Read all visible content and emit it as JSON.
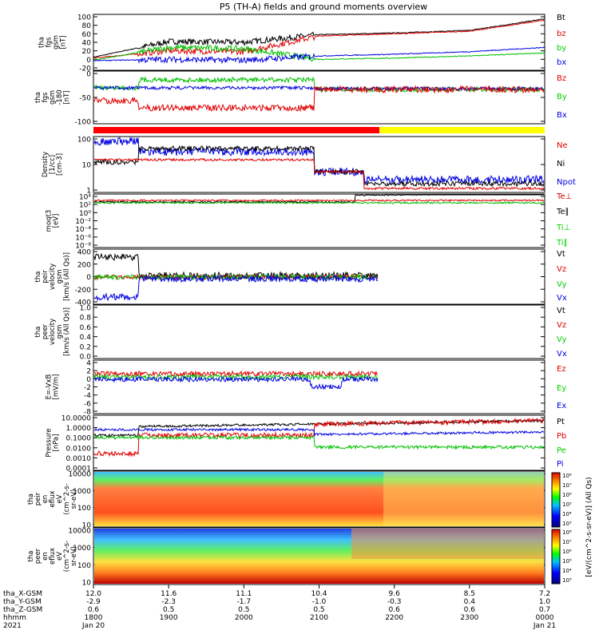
{
  "title": "P5 (TH-A) fields and ground moments overview",
  "panels": [
    {
      "id": "fgs",
      "ylabel": [
        "tha",
        "fgs",
        "gsm",
        "[nT]"
      ],
      "ticks": [
        "100",
        "80",
        "60",
        "40",
        "20",
        "0",
        "-20"
      ],
      "legend": [
        {
          "t": "Bt",
          "c": "#000000"
        },
        {
          "t": "bz",
          "c": "#e00000"
        },
        {
          "t": "by",
          "c": "#00d000"
        },
        {
          "t": "bx",
          "c": "#0000e0"
        }
      ]
    },
    {
      "id": "fgs2",
      "ylabel": [
        "tha",
        "fgs",
        "gsm",
        "-180",
        "[nT]"
      ],
      "ticks": [
        "0",
        "-50",
        "-100"
      ],
      "legend": [
        {
          "t": "Bz",
          "c": "#e00000"
        },
        {
          "t": "By",
          "c": "#00d000"
        },
        {
          "t": "Bx",
          "c": "#0000e0"
        }
      ]
    },
    {
      "id": "dens",
      "ylabel": [
        "Density",
        "[1/cc]",
        "[cm-3]"
      ],
      "ticks": [
        "100",
        "10",
        "1"
      ],
      "legend": [
        {
          "t": "Ne",
          "c": "#e00000"
        },
        {
          "t": "Ni",
          "c": "#000000"
        },
        {
          "t": "Npot",
          "c": "#0000e0"
        }
      ]
    },
    {
      "id": "temp",
      "ylabel": [
        "moqt3",
        "[eV]"
      ],
      "ticks": [
        "10⁴",
        "10²",
        "10⁰",
        "10⁻²",
        "10⁻⁴",
        "10⁻⁶",
        "10⁻⁸"
      ],
      "legend": [
        {
          "t": "Te⊥",
          "c": "#e00000"
        },
        {
          "t": "Te∥",
          "c": "#000000"
        },
        {
          "t": "Ti⊥",
          "c": "#00d000"
        },
        {
          "t": "Ti∥",
          "c": "#00d000"
        }
      ]
    },
    {
      "id": "vi",
      "ylabel": [
        "tha",
        "peir",
        "velocity",
        "gsm",
        "[km/s (All Qs)]"
      ],
      "ticks": [
        "400",
        "200",
        "0",
        "-200",
        "-400"
      ],
      "legend": [
        {
          "t": "Vt",
          "c": "#000000"
        },
        {
          "t": "Vz",
          "c": "#e00000"
        },
        {
          "t": "Vy",
          "c": "#00d000"
        },
        {
          "t": "Vx",
          "c": "#0000e0"
        }
      ]
    },
    {
      "id": "ve",
      "ylabel": [
        "tha",
        "peer",
        "velocity",
        "gsm",
        "[km/s (All Qs)]"
      ],
      "ticks": [
        "1.0",
        "0.8",
        "0.6",
        "0.4",
        "0.2",
        "0.0"
      ],
      "legend": [
        {
          "t": "Vt",
          "c": "#000000"
        },
        {
          "t": "Vz",
          "c": "#e00000"
        },
        {
          "t": "Vy",
          "c": "#00d000"
        },
        {
          "t": "Vx",
          "c": "#0000e0"
        }
      ]
    },
    {
      "id": "efield",
      "ylabel": [
        "E=-VxB",
        "[mV/m]"
      ],
      "ticks": [
        "4",
        "2",
        "0",
        "-2",
        "-4",
        "-6",
        "-8"
      ],
      "legend": [
        {
          "t": "Ez",
          "c": "#e00000"
        },
        {
          "t": "Ey",
          "c": "#00d000"
        },
        {
          "t": "Ex",
          "c": "#0000e0"
        }
      ]
    },
    {
      "id": "press",
      "ylabel": [
        "Pressure",
        "[nPa]"
      ],
      "ticks": [
        "10.0000",
        "1.0000",
        "0.1000",
        "0.0100",
        "0.0010",
        "0.0001"
      ],
      "legend": [
        {
          "t": "Pt",
          "c": "#000000"
        },
        {
          "t": "Pb",
          "c": "#e00000"
        },
        {
          "t": "Pe",
          "c": "#00d000"
        },
        {
          "t": "Pi",
          "c": "#0000e0"
        }
      ]
    },
    {
      "id": "ispec",
      "ylabel": [
        "tha",
        "peir",
        "en",
        "eflux",
        "eV",
        "(cm^2-s-",
        "sr-eV)"
      ],
      "ticks": [
        "10000",
        "1000",
        "100",
        "10"
      ]
    },
    {
      "id": "espec",
      "ylabel": [
        "tha",
        "peer",
        "en",
        "eflux",
        "eV",
        "(cm^2-s-",
        "sr-eV)"
      ],
      "ticks": [
        "10000",
        "1000",
        "100",
        "10"
      ]
    }
  ],
  "colorbar": {
    "label": "[eV/(cm^2-s-sr-eV)] (All Qs)",
    "top_ticks": [
      "10⁸",
      "10⁷",
      "10⁶",
      "10⁵",
      "10⁴",
      "10³"
    ],
    "bottom_ticks": [
      "10⁸",
      "10⁷",
      "10⁶",
      "10⁵",
      "10⁴",
      "10³"
    ]
  },
  "xaxis": {
    "row_labels": [
      "tha_X-GSM",
      "tha_Y-GSM",
      "tha_Z-GSM",
      "hhmm",
      "2021"
    ],
    "ticks": [
      {
        "x": "12.0",
        "y": "-2.9",
        "z": "0.6",
        "t": "1800",
        "d": "Jan 20"
      },
      {
        "x": "11.6",
        "y": "-2.3",
        "z": "0.5",
        "t": "1900",
        "d": ""
      },
      {
        "x": "11.1",
        "y": "-1.7",
        "z": "0.5",
        "t": "2000",
        "d": ""
      },
      {
        "x": "10.4",
        "y": "-1.0",
        "z": "0.5",
        "t": "2100",
        "d": ""
      },
      {
        "x": "9.6",
        "y": "-0.3",
        "z": "0.6",
        "t": "2200",
        "d": ""
      },
      {
        "x": "8.5",
        "y": "0.4",
        "z": "0.6",
        "t": "2300",
        "d": ""
      },
      {
        "x": "7.2",
        "y": "1.0",
        "z": "0.7",
        "t": "0000",
        "d": "Jan 21"
      }
    ]
  },
  "chart_data": {
    "type": "line",
    "title": "P5 (TH-A) fields and ground moments overview",
    "x": [
      "1800",
      "1900",
      "2000",
      "2100",
      "2200",
      "2300",
      "0000"
    ],
    "series": [
      {
        "name": "Bt",
        "values": [
          5,
          42,
          40,
          58,
          62,
          68,
          95
        ]
      },
      {
        "name": "bz",
        "values": [
          3,
          20,
          18,
          55,
          60,
          66,
          92
        ]
      },
      {
        "name": "by",
        "values": [
          -2,
          28,
          25,
          0,
          3,
          8,
          15
        ]
      },
      {
        "name": "bx",
        "values": [
          -3,
          0,
          -2,
          8,
          12,
          18,
          28
        ]
      }
    ]
  }
}
